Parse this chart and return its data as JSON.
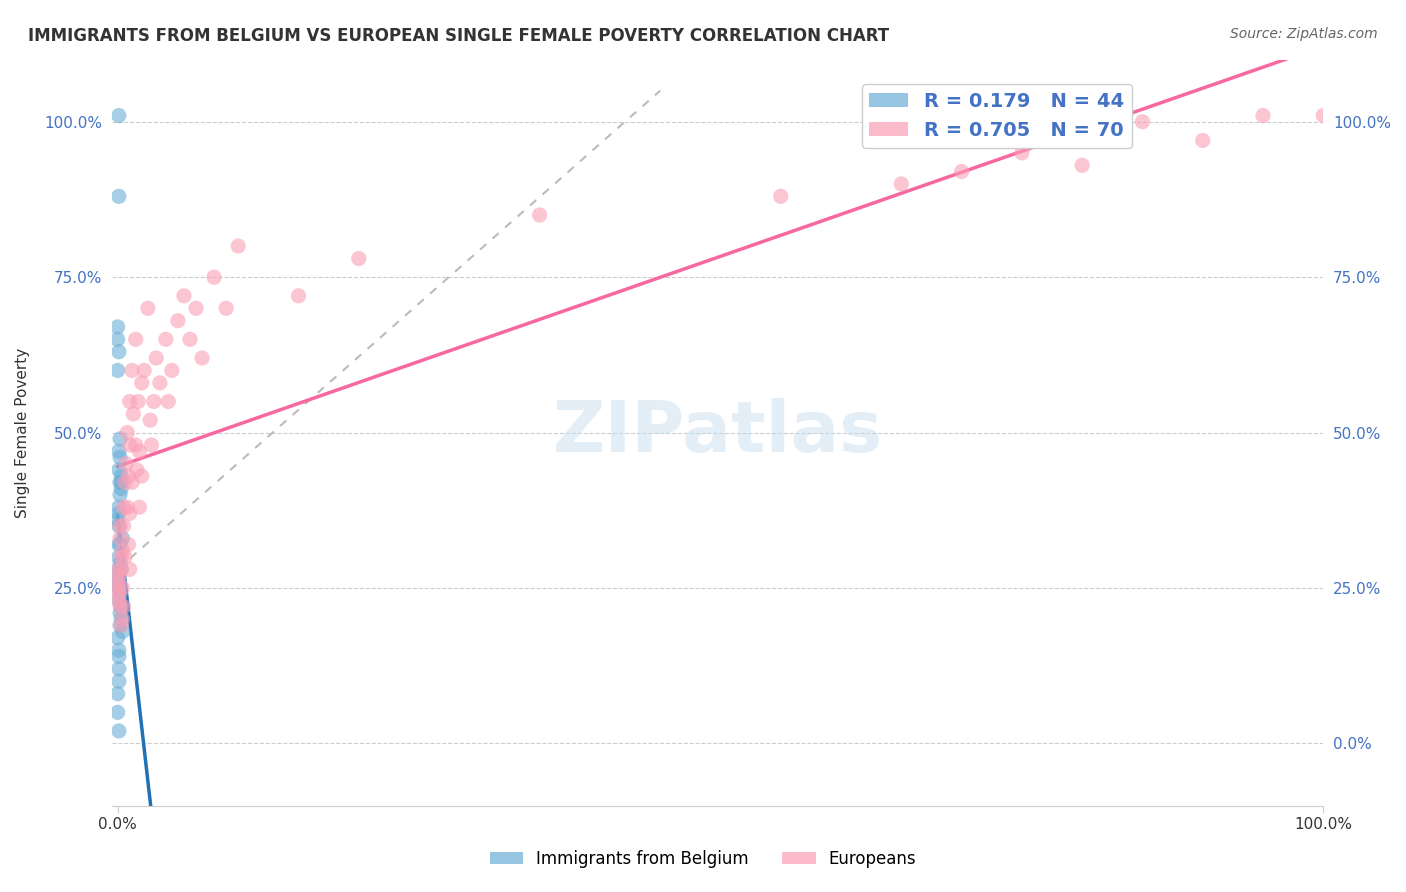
{
  "title": "IMMIGRANTS FROM BELGIUM VS EUROPEAN SINGLE FEMALE POVERTY CORRELATION CHART",
  "source": "Source: ZipAtlas.com",
  "xlabel": "",
  "ylabel": "Single Female Poverty",
  "x_tick_labels": [
    "0.0%",
    "100.0%"
  ],
  "y_tick_labels": [
    "0.0%",
    "25.0%",
    "50.0%",
    "75.0%",
    "100.0%"
  ],
  "y_tick_values": [
    0,
    0.25,
    0.5,
    0.75,
    1.0
  ],
  "legend_label1": "Immigrants from Belgium",
  "legend_label2": "Europeans",
  "R1": 0.179,
  "N1": 44,
  "R2": 0.705,
  "N2": 70,
  "color_blue": "#6baed6",
  "color_pink": "#fa9fb5",
  "color_blue_line": "#2171b5",
  "color_pink_line": "#f768a1",
  "color_dashed_line": "#9ecae1",
  "watermark": "ZIPatlas",
  "blue_points_x": [
    0.001,
    0.001,
    0.0,
    0.0,
    0.001,
    0.0,
    0.002,
    0.001,
    0.002,
    0.001,
    0.003,
    0.002,
    0.003,
    0.003,
    0.002,
    0.001,
    0.001,
    0.0,
    0.001,
    0.004,
    0.002,
    0.001,
    0.001,
    0.002,
    0.003,
    0.001,
    0.001,
    0.0,
    0.001,
    0.002,
    0.001,
    0.003,
    0.002,
    0.003,
    0.002,
    0.004,
    0.0,
    0.001,
    0.001,
    0.001,
    0.001,
    0.0,
    0.0,
    0.001
  ],
  "blue_points_y": [
    1.01,
    0.88,
    0.67,
    0.65,
    0.63,
    0.6,
    0.49,
    0.47,
    0.46,
    0.44,
    0.43,
    0.42,
    0.42,
    0.41,
    0.4,
    0.38,
    0.37,
    0.36,
    0.35,
    0.33,
    0.32,
    0.32,
    0.3,
    0.29,
    0.28,
    0.28,
    0.27,
    0.26,
    0.25,
    0.24,
    0.23,
    0.22,
    0.21,
    0.2,
    0.19,
    0.18,
    0.17,
    0.15,
    0.14,
    0.12,
    0.1,
    0.08,
    0.05,
    0.02
  ],
  "pink_points_x": [
    0.001,
    0.001,
    0.001,
    0.001,
    0.001,
    0.001,
    0.002,
    0.002,
    0.002,
    0.003,
    0.003,
    0.003,
    0.004,
    0.004,
    0.004,
    0.005,
    0.005,
    0.005,
    0.006,
    0.006,
    0.007,
    0.008,
    0.008,
    0.009,
    0.009,
    0.01,
    0.01,
    0.01,
    0.01,
    0.012,
    0.012,
    0.013,
    0.015,
    0.015,
    0.016,
    0.017,
    0.018,
    0.018,
    0.02,
    0.02,
    0.022,
    0.025,
    0.027,
    0.028,
    0.03,
    0.032,
    0.035,
    0.04,
    0.042,
    0.045,
    0.05,
    0.055,
    0.06,
    0.065,
    0.07,
    0.08,
    0.09,
    0.1,
    0.15,
    0.2,
    0.35,
    0.55,
    0.65,
    0.7,
    0.75,
    0.8,
    0.85,
    0.9,
    0.95,
    1.0
  ],
  "pink_points_y": [
    0.28,
    0.27,
    0.26,
    0.25,
    0.24,
    0.23,
    0.35,
    0.33,
    0.22,
    0.3,
    0.28,
    0.19,
    0.31,
    0.25,
    0.2,
    0.38,
    0.35,
    0.22,
    0.42,
    0.3,
    0.45,
    0.5,
    0.38,
    0.43,
    0.32,
    0.55,
    0.48,
    0.37,
    0.28,
    0.6,
    0.42,
    0.53,
    0.65,
    0.48,
    0.44,
    0.55,
    0.47,
    0.38,
    0.58,
    0.43,
    0.6,
    0.7,
    0.52,
    0.48,
    0.55,
    0.62,
    0.58,
    0.65,
    0.55,
    0.6,
    0.68,
    0.72,
    0.65,
    0.7,
    0.62,
    0.75,
    0.7,
    0.8,
    0.72,
    0.78,
    0.85,
    0.88,
    0.9,
    0.92,
    0.95,
    0.93,
    1.0,
    0.97,
    1.01,
    1.01
  ],
  "xlim": [
    -0.005,
    1.0
  ],
  "ylim": [
    -0.1,
    1.1
  ]
}
